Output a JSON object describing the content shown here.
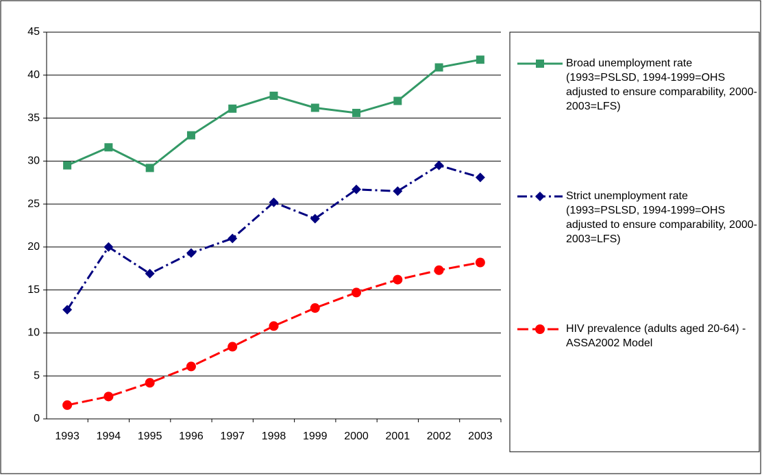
{
  "chart_data": {
    "type": "line",
    "categories": [
      "1993",
      "1994",
      "1995",
      "1996",
      "1997",
      "1998",
      "1999",
      "2000",
      "2001",
      "2002",
      "2003"
    ],
    "series": [
      {
        "name": "Broad unemployment rate (1993=PSLSD, 1994-1999=OHS adjusted to ensure comparability, 2000-2003=LFS)",
        "color": "#339966",
        "marker": "square",
        "dash": "solid",
        "values": [
          29.5,
          31.6,
          29.2,
          33.0,
          36.1,
          37.6,
          36.2,
          35.6,
          37.0,
          40.9,
          41.8
        ]
      },
      {
        "name": "Strict unemployment rate (1993=PSLSD, 1994-1999=OHS adjusted to ensure comparability, 2000-2003=LFS)",
        "color": "#000080",
        "marker": "diamond",
        "dash": "dash-dot",
        "values": [
          12.7,
          20.0,
          16.9,
          19.3,
          21.0,
          25.2,
          23.3,
          26.7,
          26.5,
          29.5,
          28.1
        ]
      },
      {
        "name": "HIV prevalence (adults aged 20-64) - ASSA2002 Model",
        "color": "#ff0000",
        "marker": "circle",
        "dash": "dashed",
        "values": [
          1.6,
          2.6,
          4.2,
          6.1,
          8.4,
          10.8,
          12.9,
          14.7,
          16.2,
          17.3,
          18.2
        ]
      }
    ],
    "ylim": [
      0,
      45
    ],
    "yticks": [
      0,
      5,
      10,
      15,
      20,
      25,
      30,
      35,
      40,
      45
    ],
    "grid": true,
    "legend": "right"
  }
}
